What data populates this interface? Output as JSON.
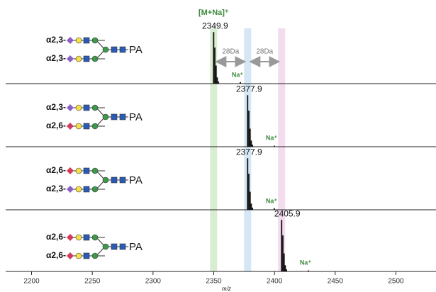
{
  "chart_data": {
    "type": "spectrum",
    "x_label": "m/z",
    "xlim": [
      2174,
      2533
    ],
    "xticks": [
      2200,
      2250,
      2300,
      2350,
      2400,
      2450,
      2500
    ],
    "ylim": [
      0,
      110
    ],
    "adduct_label": "[M+Na]⁺",
    "shift_label": "28Da",
    "sodium_label": "Na⁺",
    "bands": [
      2349.9,
      2377.9,
      2405.9
    ],
    "band_colors": [
      "#d9edd2",
      "#d5e7f6",
      "#f3dcee"
    ],
    "panels": [
      {
        "upper_linkage": "α2,3-",
        "lower_linkage": "α2,3-",
        "upper_color": "#8a5fc7",
        "lower_color": "#8a5fc7",
        "tag": "PA",
        "color": "#111",
        "x": [
          2349.9,
          2350.9,
          2351.9,
          2352.9,
          2353.9,
          2371.9
        ],
        "values": [
          100,
          70,
          35,
          12,
          4,
          3
        ]
      },
      {
        "upper_linkage": "α2,3-",
        "lower_linkage": "α2,6-",
        "upper_color": "#8a5fc7",
        "lower_color": "#d23c5a",
        "tag": "PA",
        "color": "#111",
        "x": [
          2377.9,
          2378.9,
          2379.9,
          2380.9,
          2381.9,
          2399.9
        ],
        "values": [
          100,
          70,
          35,
          12,
          4,
          2
        ]
      },
      {
        "upper_linkage": "α2,6-",
        "lower_linkage": "α2,3-",
        "upper_color": "#d23c5a",
        "lower_color": "#8a5fc7",
        "tag": "PA",
        "color": "#111",
        "x": [
          2377.9,
          2378.9,
          2379.9,
          2380.9,
          2381.9,
          2399.9
        ],
        "values": [
          100,
          70,
          35,
          12,
          4,
          3
        ]
      },
      {
        "upper_linkage": "α2,6-",
        "lower_linkage": "α2,6-",
        "upper_color": "#d23c5a",
        "lower_color": "#d23c5a",
        "tag": "PA",
        "color": "#111",
        "x": [
          2405.9,
          2406.9,
          2407.9,
          2408.9,
          2409.9,
          2427.9
        ],
        "values": [
          100,
          70,
          35,
          12,
          4,
          2
        ]
      }
    ]
  }
}
